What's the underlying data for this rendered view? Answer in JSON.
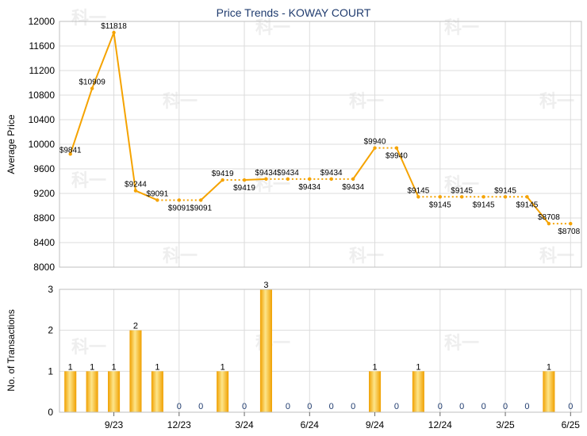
{
  "title": "Price Trends - KOWAY COURT",
  "watermark_text": "科一",
  "colors": {
    "line": "#f5a300",
    "bar_light": "#fde58a",
    "bar_dark": "#f0a000",
    "grid": "#dcdcdc",
    "frame": "#bfbfbf",
    "title": "#1f3b6e"
  },
  "chart_data": [
    {
      "type": "line",
      "ylabel": "Average Price",
      "ylim": [
        8000,
        12000
      ],
      "yticks": [
        8000,
        8400,
        8800,
        9200,
        9600,
        10000,
        10400,
        10800,
        11200,
        11600,
        12000
      ],
      "grid": true,
      "points": [
        {
          "x": 0,
          "y": 9841,
          "label": "$9841",
          "seg": "solid"
        },
        {
          "x": 1,
          "y": 10909,
          "label": "$10909",
          "seg": "solid"
        },
        {
          "x": 2,
          "y": 11818,
          "label": "$11818",
          "seg": "solid"
        },
        {
          "x": 3,
          "y": 9244,
          "label": "$9244",
          "seg": "solid"
        },
        {
          "x": 4,
          "y": 9091,
          "label": "$9091",
          "seg": "solid"
        },
        {
          "x": 5,
          "y": 9091,
          "label": "$9091",
          "seg": "dotted"
        },
        {
          "x": 6,
          "y": 9091,
          "label": "$9091",
          "seg": "dotted"
        },
        {
          "x": 7,
          "y": 9419,
          "label": "$9419",
          "seg": "solid"
        },
        {
          "x": 8,
          "y": 9419,
          "label": "$9419",
          "seg": "dotted"
        },
        {
          "x": 9,
          "y": 9434,
          "label": "$9434",
          "seg": "solid"
        },
        {
          "x": 10,
          "y": 9434,
          "label": "$9434",
          "seg": "dotted"
        },
        {
          "x": 11,
          "y": 9434,
          "label": "$9434",
          "seg": "dotted"
        },
        {
          "x": 12,
          "y": 9434,
          "label": "$9434",
          "seg": "dotted"
        },
        {
          "x": 13,
          "y": 9434,
          "label": "$9434",
          "seg": "dotted"
        },
        {
          "x": 14,
          "y": 9940,
          "label": "$9940",
          "seg": "solid"
        },
        {
          "x": 15,
          "y": 9940,
          "label": "$9940",
          "seg": "dotted"
        },
        {
          "x": 16,
          "y": 9145,
          "label": "$9145",
          "seg": "solid"
        },
        {
          "x": 17,
          "y": 9145,
          "label": "$9145",
          "seg": "dotted"
        },
        {
          "x": 18,
          "y": 9145,
          "label": "$9145",
          "seg": "dotted"
        },
        {
          "x": 19,
          "y": 9145,
          "label": "$9145",
          "seg": "dotted"
        },
        {
          "x": 20,
          "y": 9145,
          "label": "$9145",
          "seg": "dotted"
        },
        {
          "x": 21,
          "y": 9145,
          "label": "$9145",
          "seg": "dotted"
        },
        {
          "x": 22,
          "y": 8708,
          "label": "$8708",
          "seg": "solid"
        },
        {
          "x": 23,
          "y": 8708,
          "label": "$8708",
          "seg": "dotted"
        }
      ]
    },
    {
      "type": "bar",
      "ylabel": "No. of Transactions",
      "ylim": [
        0,
        3
      ],
      "yticks": [
        0,
        1,
        2,
        3
      ],
      "grid": true,
      "values": [
        1,
        1,
        1,
        2,
        1,
        0,
        0,
        1,
        0,
        3,
        0,
        0,
        0,
        0,
        1,
        0,
        1,
        0,
        0,
        0,
        0,
        0,
        1,
        0
      ],
      "xticks": [
        {
          "index": 2,
          "label": "9/23"
        },
        {
          "index": 5,
          "label": "12/23"
        },
        {
          "index": 8,
          "label": "3/24"
        },
        {
          "index": 11,
          "label": "6/24"
        },
        {
          "index": 14,
          "label": "9/24"
        },
        {
          "index": 17,
          "label": "12/24"
        },
        {
          "index": 20,
          "label": "3/25"
        },
        {
          "index": 23,
          "label": "6/25"
        }
      ]
    }
  ]
}
